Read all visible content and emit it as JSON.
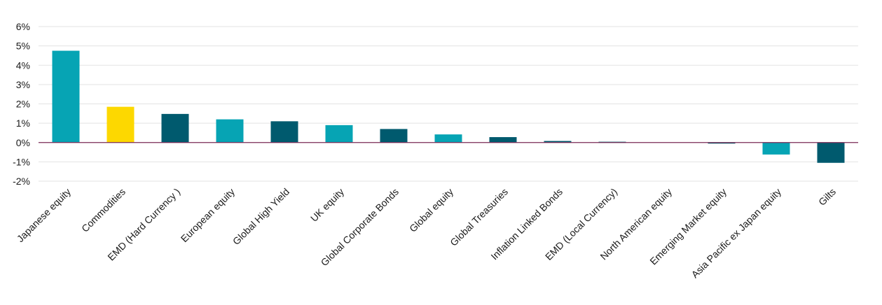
{
  "chart_data": {
    "type": "bar",
    "title": "",
    "xlabel": "",
    "ylabel": "",
    "ylim": [
      -2,
      6
    ],
    "y_ticks": [
      "-2%",
      "-1%",
      "0%",
      "1%",
      "2%",
      "3%",
      "4%",
      "5%",
      "6%"
    ],
    "grid": true,
    "legend": "none",
    "categories": [
      "Japanese equity",
      "Commodities",
      "EMD (Hard Currency )",
      "European equity",
      "Global High Yield",
      "UK equity",
      "Global Corporate Bonds",
      "Global equity",
      "Global Treasuries",
      "Inflation Linked Bonds",
      "EMD (Local Currency)",
      "North American equity",
      "Emerging Market equity",
      "Asia Pacific ex Japan equity",
      "Gilts"
    ],
    "values": [
      4.75,
      1.85,
      1.48,
      1.2,
      1.1,
      0.9,
      0.7,
      0.42,
      0.28,
      0.08,
      0.04,
      0.0,
      -0.05,
      -0.62,
      -1.05
    ],
    "colors": [
      "#06a4b4",
      "#fdd800",
      "#005a6e",
      "#06a4b4",
      "#005a6e",
      "#06a4b4",
      "#005a6e",
      "#06a4b4",
      "#005a6e",
      "#005a6e",
      "#005a6e",
      "#005a6e",
      "#005a6e",
      "#06a4b4",
      "#005a6e"
    ],
    "zero_line_color": "#7a2a55"
  }
}
